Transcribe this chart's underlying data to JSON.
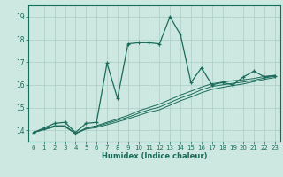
{
  "xlabel": "Humidex (Indice chaleur)",
  "background_color": "#cce8e0",
  "grid_color": "#aaccc4",
  "line_color": "#1a6b5a",
  "xlim": [
    -0.5,
    23.5
  ],
  "ylim": [
    13.5,
    19.5
  ],
  "xticks": [
    0,
    1,
    2,
    3,
    4,
    5,
    6,
    7,
    8,
    9,
    10,
    11,
    12,
    13,
    14,
    15,
    16,
    17,
    18,
    19,
    20,
    21,
    22,
    23
  ],
  "yticks": [
    14,
    15,
    16,
    17,
    18,
    19
  ],
  "main_x": [
    0,
    1,
    2,
    3,
    4,
    5,
    6,
    7,
    8,
    9,
    10,
    11,
    12,
    13,
    14,
    15,
    16,
    17,
    18,
    19,
    20,
    21,
    22,
    23
  ],
  "main_y": [
    13.9,
    14.1,
    14.3,
    14.35,
    13.9,
    14.3,
    14.35,
    16.95,
    15.4,
    17.8,
    17.85,
    17.85,
    17.8,
    19.0,
    18.2,
    16.1,
    16.75,
    16.0,
    16.1,
    16.0,
    16.35,
    16.6,
    16.35,
    16.4
  ],
  "line2_y": [
    13.9,
    14.05,
    14.2,
    14.2,
    13.85,
    14.1,
    14.2,
    14.35,
    14.5,
    14.65,
    14.85,
    15.0,
    15.15,
    15.35,
    15.55,
    15.72,
    15.9,
    16.05,
    16.12,
    16.18,
    16.22,
    16.28,
    16.37,
    16.42
  ],
  "line3_y": [
    13.9,
    14.04,
    14.18,
    14.18,
    13.85,
    14.08,
    14.17,
    14.3,
    14.44,
    14.57,
    14.75,
    14.9,
    15.02,
    15.22,
    15.42,
    15.58,
    15.78,
    15.93,
    16.0,
    16.07,
    16.12,
    16.2,
    16.3,
    16.38
  ],
  "line4_y": [
    13.9,
    14.02,
    14.15,
    14.15,
    13.85,
    14.05,
    14.12,
    14.24,
    14.37,
    14.5,
    14.65,
    14.8,
    14.9,
    15.1,
    15.3,
    15.46,
    15.65,
    15.8,
    15.89,
    15.97,
    16.04,
    16.14,
    16.24,
    16.32
  ]
}
